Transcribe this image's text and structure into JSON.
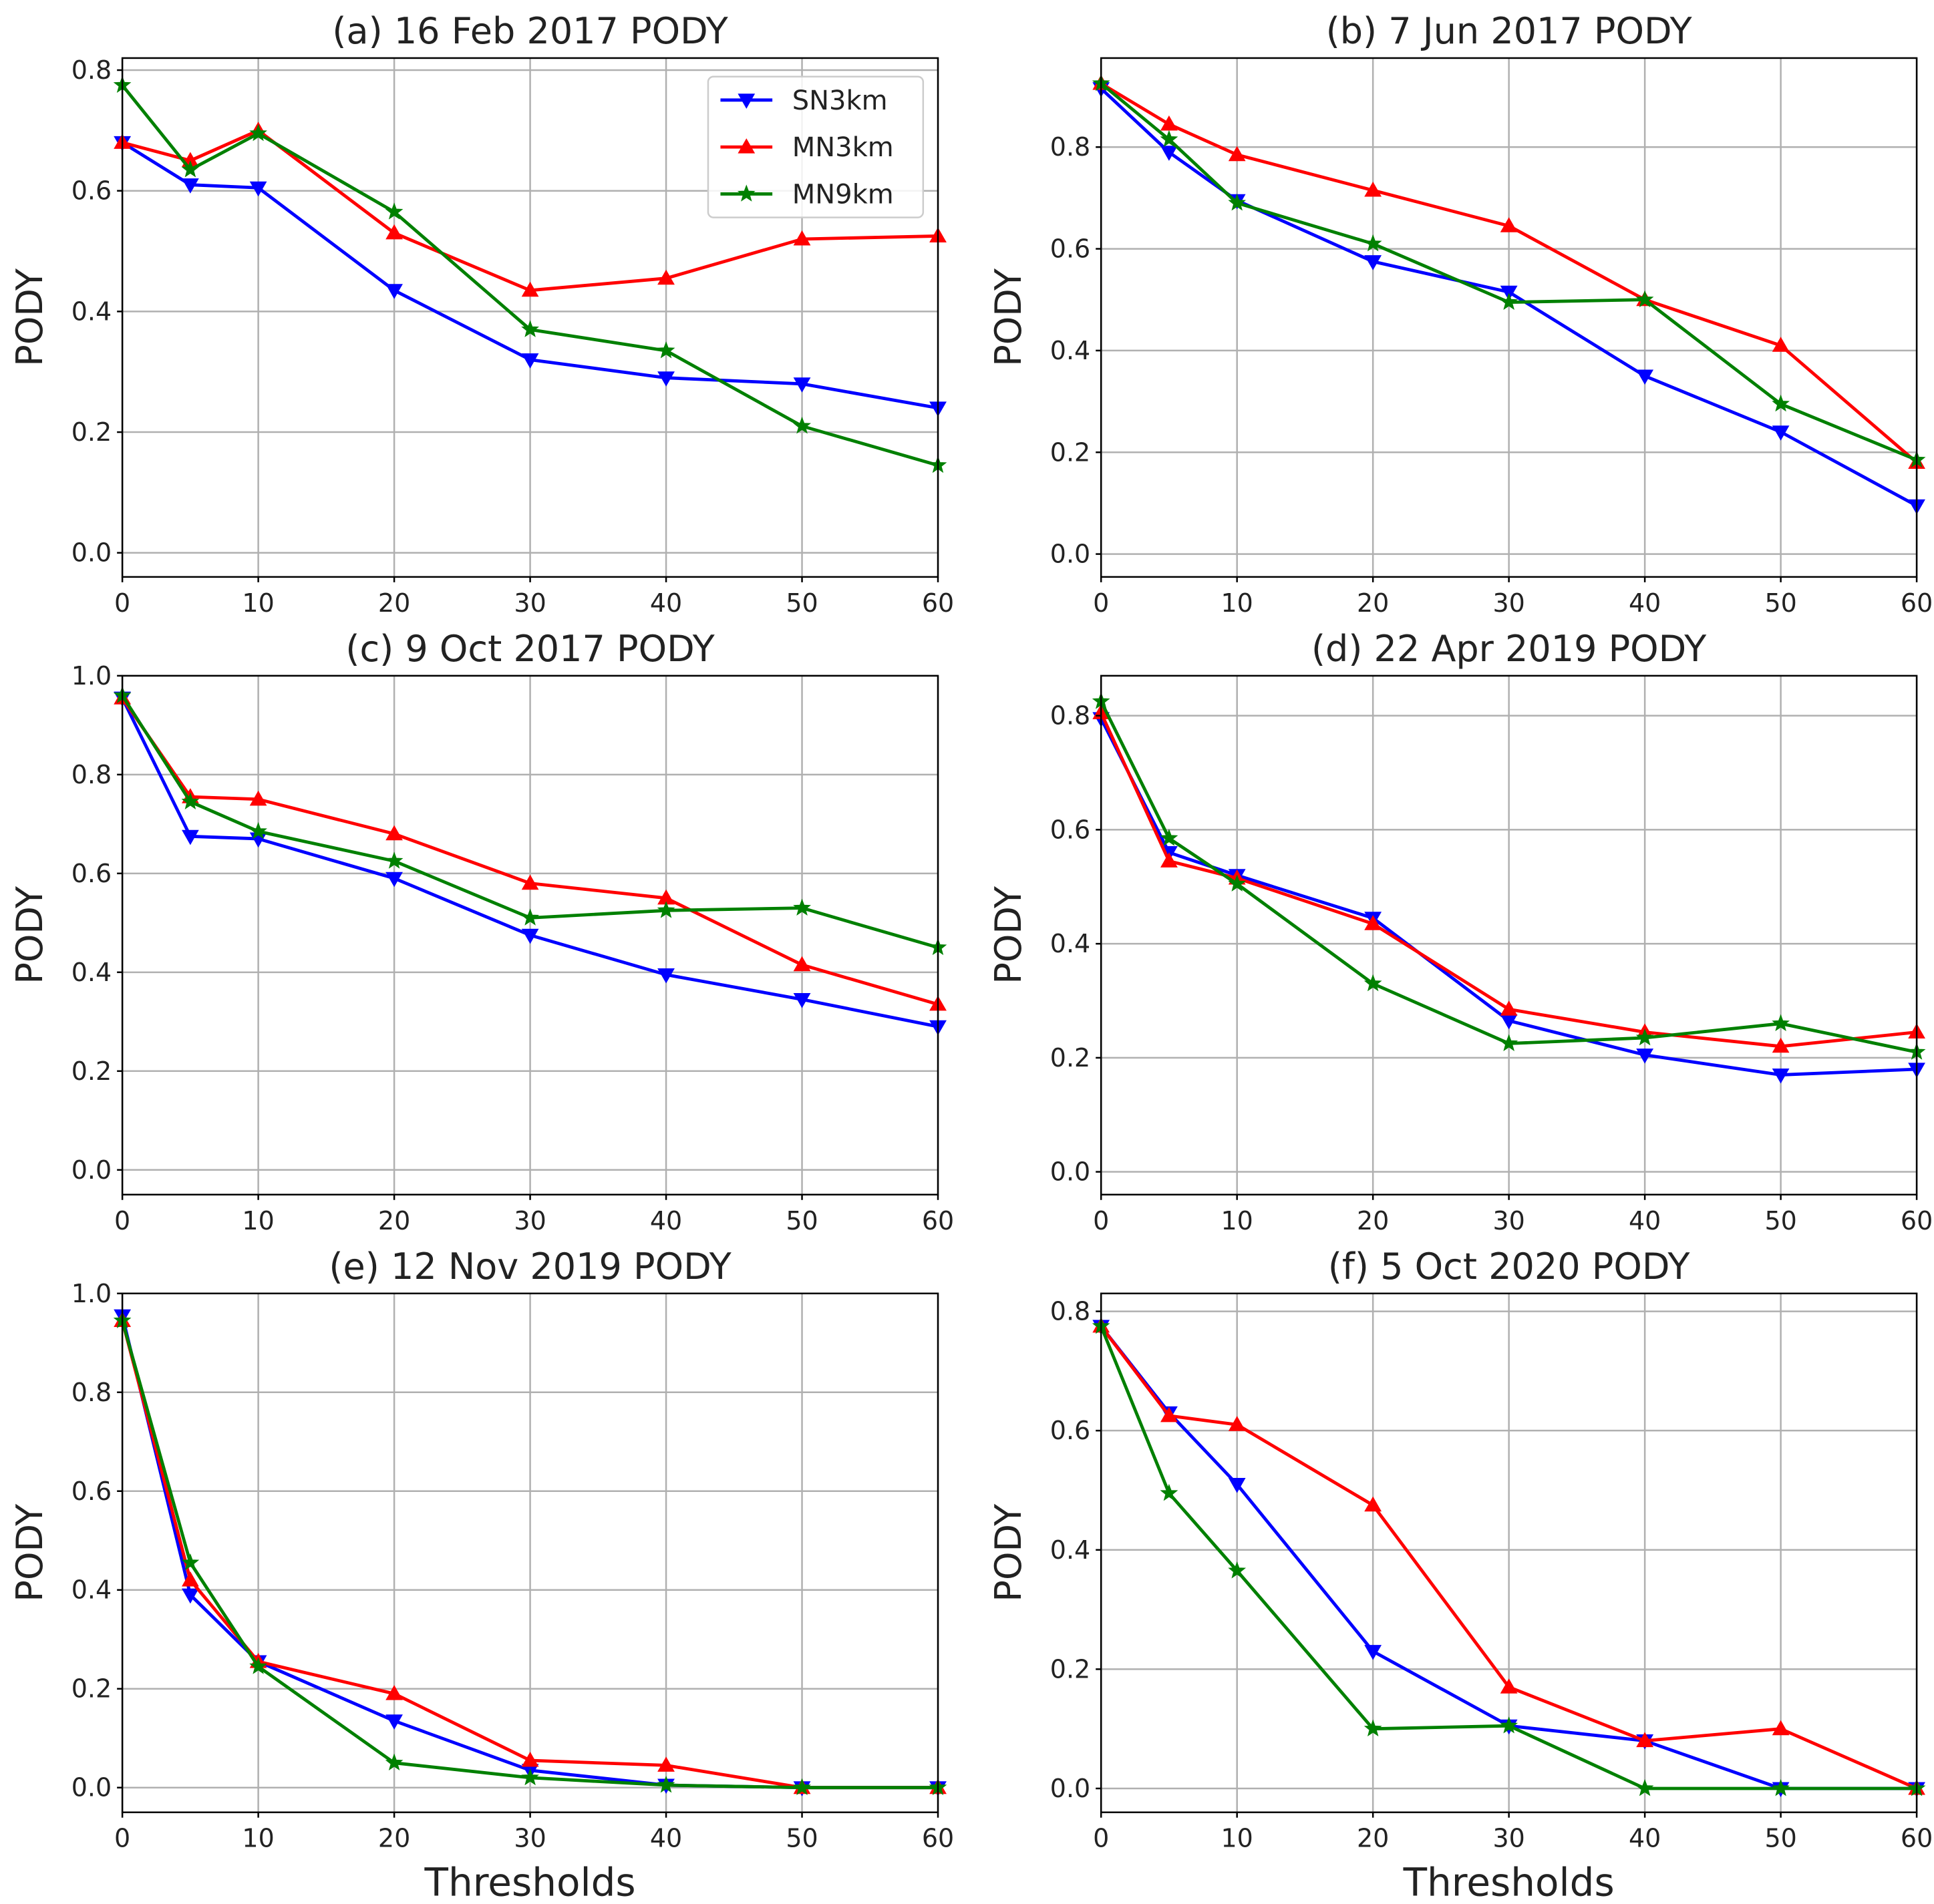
{
  "figure": {
    "legend_location": "upper-right of panel (a)"
  },
  "chart_data": [
    {
      "type": "line",
      "title": "(a) 16 Feb 2017 PODY",
      "xlabel": "",
      "ylabel": "PODY",
      "x": [
        0,
        5,
        10,
        20,
        30,
        40,
        50,
        60
      ],
      "xlim": [
        0,
        60
      ],
      "ylim": [
        -0.04,
        0.82
      ],
      "xticks": [
        0,
        10,
        20,
        30,
        40,
        50,
        60
      ],
      "yticks": [
        0.0,
        0.2,
        0.4,
        0.6,
        0.8
      ],
      "grid": true,
      "legend": true,
      "series": [
        {
          "name": "SN3km",
          "color": "#0000ff",
          "marker": "triangle-down",
          "values": [
            0.68,
            0.61,
            0.605,
            0.435,
            0.32,
            0.29,
            0.28,
            0.24
          ]
        },
        {
          "name": "MN3km",
          "color": "#ff0000",
          "marker": "triangle-up",
          "values": [
            0.68,
            0.65,
            0.7,
            0.53,
            0.435,
            0.455,
            0.52,
            0.525
          ]
        },
        {
          "name": "MN9km",
          "color": "#008000",
          "marker": "star",
          "values": [
            0.775,
            0.635,
            0.695,
            0.565,
            0.37,
            0.335,
            0.21,
            0.145
          ]
        }
      ]
    },
    {
      "type": "line",
      "title": "(b) 7 Jun 2017 PODY",
      "xlabel": "",
      "ylabel": "PODY",
      "x": [
        0,
        5,
        10,
        20,
        30,
        40,
        50,
        60
      ],
      "xlim": [
        0,
        60
      ],
      "ylim": [
        -0.045,
        0.975
      ],
      "xticks": [
        0,
        10,
        20,
        30,
        40,
        50,
        60
      ],
      "yticks": [
        0.0,
        0.2,
        0.4,
        0.6,
        0.8
      ],
      "grid": true,
      "legend": false,
      "series": [
        {
          "name": "SN3km",
          "color": "#0000ff",
          "marker": "triangle-down",
          "values": [
            0.915,
            0.79,
            0.695,
            0.575,
            0.515,
            0.35,
            0.24,
            0.095
          ]
        },
        {
          "name": "MN3km",
          "color": "#ff0000",
          "marker": "triangle-up",
          "values": [
            0.925,
            0.845,
            0.785,
            0.715,
            0.645,
            0.5,
            0.41,
            0.18
          ]
        },
        {
          "name": "MN9km",
          "color": "#008000",
          "marker": "star",
          "values": [
            0.925,
            0.815,
            0.69,
            0.61,
            0.495,
            0.5,
            0.295,
            0.185
          ]
        }
      ]
    },
    {
      "type": "line",
      "title": "(c) 9 Oct 2017 PODY",
      "xlabel": "",
      "ylabel": "PODY",
      "x": [
        0,
        5,
        10,
        20,
        30,
        40,
        50,
        60
      ],
      "xlim": [
        0,
        60
      ],
      "ylim": [
        -0.05,
        1.0
      ],
      "xticks": [
        0,
        10,
        20,
        30,
        40,
        50,
        60
      ],
      "yticks": [
        0.0,
        0.2,
        0.4,
        0.6,
        0.8,
        1.0
      ],
      "grid": true,
      "legend": false,
      "series": [
        {
          "name": "SN3km",
          "color": "#0000ff",
          "marker": "triangle-down",
          "values": [
            0.955,
            0.675,
            0.67,
            0.59,
            0.475,
            0.395,
            0.345,
            0.29
          ]
        },
        {
          "name": "MN3km",
          "color": "#ff0000",
          "marker": "triangle-up",
          "values": [
            0.955,
            0.755,
            0.75,
            0.68,
            0.58,
            0.55,
            0.415,
            0.335
          ]
        },
        {
          "name": "MN9km",
          "color": "#008000",
          "marker": "star",
          "values": [
            0.96,
            0.745,
            0.685,
            0.625,
            0.51,
            0.525,
            0.53,
            0.45
          ]
        }
      ]
    },
    {
      "type": "line",
      "title": "(d) 22 Apr 2019 PODY",
      "xlabel": "",
      "ylabel": "PODY",
      "x": [
        0,
        5,
        10,
        20,
        30,
        40,
        50,
        60
      ],
      "xlim": [
        0,
        60
      ],
      "ylim": [
        -0.04,
        0.87
      ],
      "xticks": [
        0,
        10,
        20,
        30,
        40,
        50,
        60
      ],
      "yticks": [
        0.0,
        0.2,
        0.4,
        0.6,
        0.8
      ],
      "grid": true,
      "legend": false,
      "series": [
        {
          "name": "SN3km",
          "color": "#0000ff",
          "marker": "triangle-down",
          "values": [
            0.795,
            0.56,
            0.52,
            0.445,
            0.265,
            0.205,
            0.17,
            0.18
          ]
        },
        {
          "name": "MN3km",
          "color": "#ff0000",
          "marker": "triangle-up",
          "values": [
            0.805,
            0.545,
            0.515,
            0.435,
            0.285,
            0.245,
            0.22,
            0.245
          ]
        },
        {
          "name": "MN9km",
          "color": "#008000",
          "marker": "star",
          "values": [
            0.825,
            0.585,
            0.505,
            0.33,
            0.225,
            0.235,
            0.26,
            0.21
          ]
        }
      ]
    },
    {
      "type": "line",
      "title": "(e) 12 Nov 2019 PODY",
      "xlabel": "Thresholds",
      "ylabel": "PODY",
      "x": [
        0,
        5,
        10,
        20,
        30,
        40,
        50,
        60
      ],
      "xlim": [
        0,
        60
      ],
      "ylim": [
        -0.05,
        1.0
      ],
      "xticks": [
        0,
        10,
        20,
        30,
        40,
        50,
        60
      ],
      "yticks": [
        0.0,
        0.2,
        0.4,
        0.6,
        0.8,
        1.0
      ],
      "grid": true,
      "legend": false,
      "series": [
        {
          "name": "SN3km",
          "color": "#0000ff",
          "marker": "triangle-down",
          "values": [
            0.955,
            0.39,
            0.255,
            0.135,
            0.035,
            0.005,
            0.0,
            0.0
          ]
        },
        {
          "name": "MN3km",
          "color": "#ff0000",
          "marker": "triangle-up",
          "values": [
            0.945,
            0.42,
            0.255,
            0.19,
            0.055,
            0.045,
            0.0,
            0.0
          ]
        },
        {
          "name": "MN9km",
          "color": "#008000",
          "marker": "star",
          "values": [
            0.945,
            0.455,
            0.245,
            0.05,
            0.02,
            0.005,
            0.0,
            0.0
          ]
        }
      ]
    },
    {
      "type": "line",
      "title": "(f) 5 Oct 2020 PODY",
      "xlabel": "Thresholds",
      "ylabel": "PODY",
      "x": [
        0,
        5,
        10,
        20,
        30,
        40,
        50,
        60
      ],
      "xlim": [
        0,
        60
      ],
      "ylim": [
        -0.04,
        0.83
      ],
      "xticks": [
        0,
        10,
        20,
        30,
        40,
        50,
        60
      ],
      "yticks": [
        0.0,
        0.2,
        0.4,
        0.6,
        0.8
      ],
      "grid": true,
      "legend": false,
      "series": [
        {
          "name": "SN3km",
          "color": "#0000ff",
          "marker": "triangle-down",
          "values": [
            0.775,
            0.63,
            0.51,
            0.23,
            0.105,
            0.08,
            0.0,
            0.0
          ]
        },
        {
          "name": "MN3km",
          "color": "#ff0000",
          "marker": "triangle-up",
          "values": [
            0.775,
            0.625,
            0.61,
            0.475,
            0.17,
            0.08,
            0.1,
            0.0
          ]
        },
        {
          "name": "MN9km",
          "color": "#008000",
          "marker": "star",
          "values": [
            0.775,
            0.495,
            0.365,
            0.1,
            0.105,
            0.0,
            0.0,
            0.0
          ]
        }
      ]
    }
  ]
}
